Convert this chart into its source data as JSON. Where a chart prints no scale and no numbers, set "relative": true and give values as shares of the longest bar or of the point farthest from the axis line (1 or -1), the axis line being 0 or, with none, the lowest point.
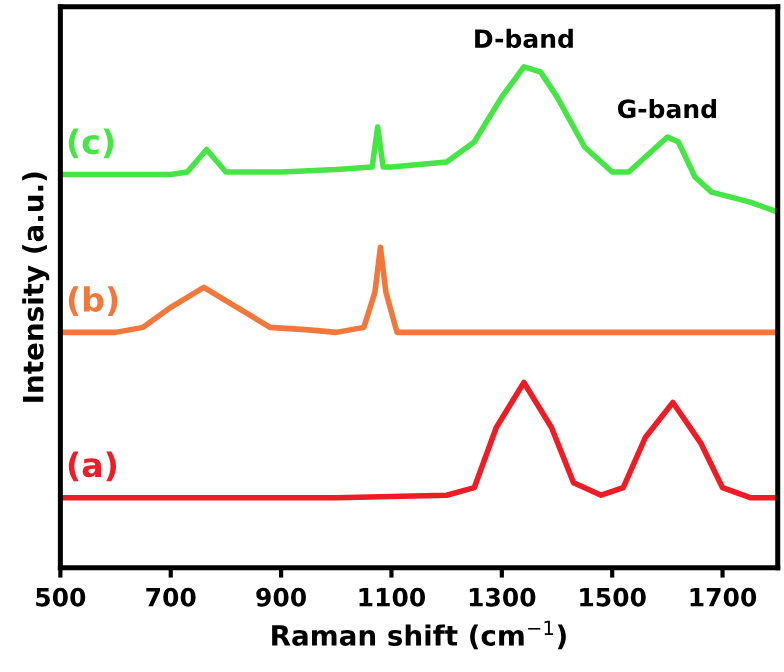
{
  "chart_data": {
    "type": "line",
    "relative": true,
    "xlabel": "Raman shift (cm$^{−1}$)",
    "ylabel": "Intensity (a.u.)",
    "xlim": [
      500,
      1800
    ],
    "xticks": [
      500,
      700,
      900,
      1100,
      1300,
      1500,
      1700
    ],
    "grid": false,
    "legend": false,
    "marker": "none",
    "line_style": "solid",
    "series": [
      {
        "name": "(a)",
        "color": "#ee1c24",
        "x": [
          500,
          1000,
          1200,
          1250,
          1290,
          1340,
          1390,
          1430,
          1480,
          1520,
          1560,
          1610,
          1660,
          1700,
          1750,
          1800
        ],
        "values": [
          0.14,
          0.14,
          0.145,
          0.16,
          0.28,
          0.37,
          0.28,
          0.17,
          0.145,
          0.16,
          0.26,
          0.33,
          0.25,
          0.16,
          0.14,
          0.14
        ]
      },
      {
        "name": "(b)",
        "color": "#f2773a",
        "x": [
          500,
          600,
          650,
          700,
          760,
          820,
          880,
          950,
          1000,
          1050,
          1070,
          1080,
          1090,
          1110,
          1200,
          1500,
          1800
        ],
        "values": [
          0.47,
          0.47,
          0.48,
          0.52,
          0.56,
          0.52,
          0.48,
          0.475,
          0.47,
          0.48,
          0.55,
          0.64,
          0.55,
          0.47,
          0.47,
          0.47,
          0.47
        ]
      },
      {
        "name": "(c)",
        "color": "#44e544",
        "x": [
          500,
          700,
          730,
          765,
          800,
          900,
          1000,
          1065,
          1075,
          1085,
          1100,
          1200,
          1250,
          1300,
          1340,
          1370,
          1400,
          1450,
          1500,
          1530,
          1570,
          1600,
          1620,
          1650,
          1680,
          1750,
          1800
        ],
        "values": [
          0.785,
          0.785,
          0.79,
          0.835,
          0.79,
          0.79,
          0.795,
          0.8,
          0.88,
          0.8,
          0.8,
          0.81,
          0.85,
          0.94,
          1.0,
          0.99,
          0.94,
          0.84,
          0.79,
          0.79,
          0.83,
          0.86,
          0.85,
          0.78,
          0.75,
          0.73,
          0.71
        ]
      }
    ],
    "annotations": [
      {
        "text": "D-band",
        "x": 1340,
        "y": 1.0
      },
      {
        "text": "G-band",
        "x": 1600,
        "y": 0.86
      }
    ]
  }
}
